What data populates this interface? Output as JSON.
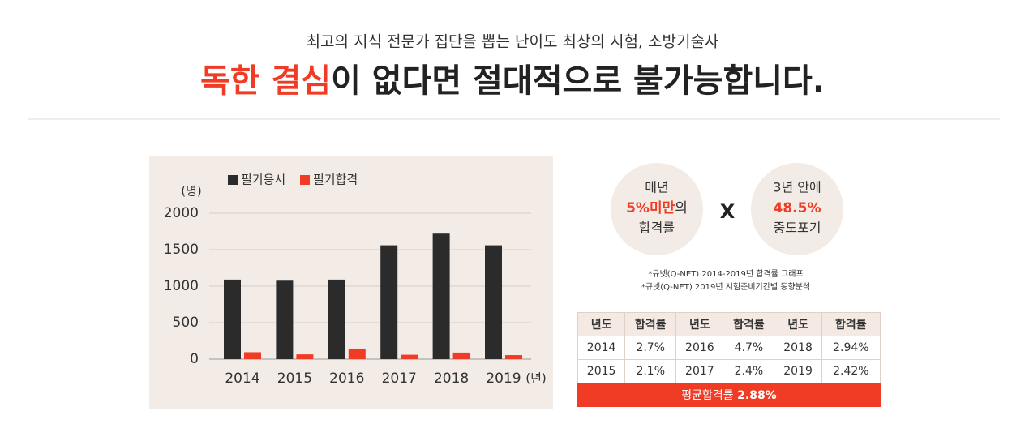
{
  "header": {
    "subtitle": "최고의 지식 전문가 집단을 뽑는 난이도 최상의 시험, 소방기술사",
    "title_highlight": "독한 결심",
    "title_rest": "이 없다면 절대적으로 불가능합니다."
  },
  "chart_data": {
    "type": "bar",
    "y_label": "(명)",
    "x_label": "(년)",
    "categories": [
      "2014",
      "2015",
      "2016",
      "2017",
      "2018",
      "2019"
    ],
    "series": [
      {
        "name": "필기응시",
        "color": "#2b2b2b",
        "values": [
          1090,
          1075,
          1090,
          1560,
          1720,
          1560
        ]
      },
      {
        "name": "필기합격",
        "color": "#f03c24",
        "values": [
          95,
          65,
          145,
          60,
          90,
          55
        ]
      }
    ],
    "ylim": [
      0,
      2000
    ],
    "yticks": [
      0,
      500,
      1000,
      1500,
      2000
    ],
    "grid": true,
    "legend": "top"
  },
  "circles": [
    {
      "line1": "매년",
      "highlight": "5%미만",
      "suffix": "의",
      "line3": "합격률"
    },
    {
      "line1": "3년 안에",
      "highlight": "48.5%",
      "line3": "중도포기"
    }
  ],
  "times": "X",
  "notes": [
    "*큐넷(Q-NET) 2014-2019년 합격률 그래프",
    "*큐넷(Q-NET) 2019년 시험준비기간별 동향분석"
  ],
  "table": {
    "header": [
      "년도",
      "합격률",
      "년도",
      "합격률",
      "년도",
      "합격률"
    ],
    "rows": [
      [
        "2014",
        "2.7%",
        "2016",
        "4.7%",
        "2018",
        "2.94%"
      ],
      [
        "2015",
        "2.1%",
        "2017",
        "2.4%",
        "2019",
        "2.42%"
      ]
    ],
    "footer_label": "평균합격률",
    "footer_value": "2.88%"
  }
}
